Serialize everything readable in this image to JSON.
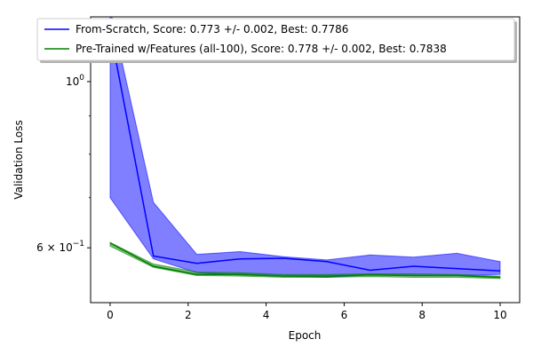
{
  "chart_data": {
    "type": "line",
    "xlabel": "Epoch",
    "ylabel": "Validation Loss",
    "xlim": [
      -0.5,
      10.5
    ],
    "ylim": [
      0.507,
      1.22
    ],
    "yscale": "log",
    "grid": false,
    "legend_position": "top",
    "x_ticks": [
      {
        "value": 0,
        "label": "0"
      },
      {
        "value": 2,
        "label": "2"
      },
      {
        "value": 4,
        "label": "4"
      },
      {
        "value": 6,
        "label": "6"
      },
      {
        "value": 8,
        "label": "8"
      },
      {
        "value": 10,
        "label": "10"
      }
    ],
    "y_major_ticks": [
      {
        "value": 0.6,
        "base": "6",
        "times": " × 10",
        "exp": "−1"
      },
      {
        "value": 1.0,
        "base": "10",
        "exp": "0"
      }
    ],
    "y_minor_ticks": [
      0.7,
      0.8,
      0.9
    ],
    "x": [
      0,
      1.111,
      2.222,
      3.333,
      4.444,
      5.556,
      6.667,
      7.778,
      8.889,
      10
    ],
    "series": [
      {
        "name": "From-Scratch, Score: 0.773 +/- 0.002,  Best: 0.7786",
        "color": "#0000ff",
        "fill_color": "#0000ff",
        "values": [
          1.17,
          0.585,
          0.572,
          0.58,
          0.581,
          0.575,
          0.56,
          0.567,
          0.563,
          0.559
        ],
        "upper": [
          1.25,
          0.69,
          0.588,
          0.593,
          0.584,
          0.578,
          0.587,
          0.583,
          0.59,
          0.575
        ],
        "lower": [
          0.7,
          0.58,
          0.556,
          0.552,
          0.55,
          0.548,
          0.552,
          0.551,
          0.551,
          0.553
        ]
      },
      {
        "name": "Pre-Trained w/Features (all-100), Score: 0.778 +/- 0.002,  Best: 0.7838",
        "color": "#008000",
        "fill_color": "#008000",
        "values": [
          0.609,
          0.567,
          0.553,
          0.553,
          0.55,
          0.55,
          0.552,
          0.551,
          0.551,
          0.548
        ],
        "upper": [
          0.61,
          0.571,
          0.557,
          0.556,
          0.553,
          0.553,
          0.554,
          0.554,
          0.553,
          0.55
        ],
        "lower": [
          0.603,
          0.565,
          0.551,
          0.55,
          0.548,
          0.548,
          0.549,
          0.548,
          0.548,
          0.546
        ]
      }
    ]
  }
}
